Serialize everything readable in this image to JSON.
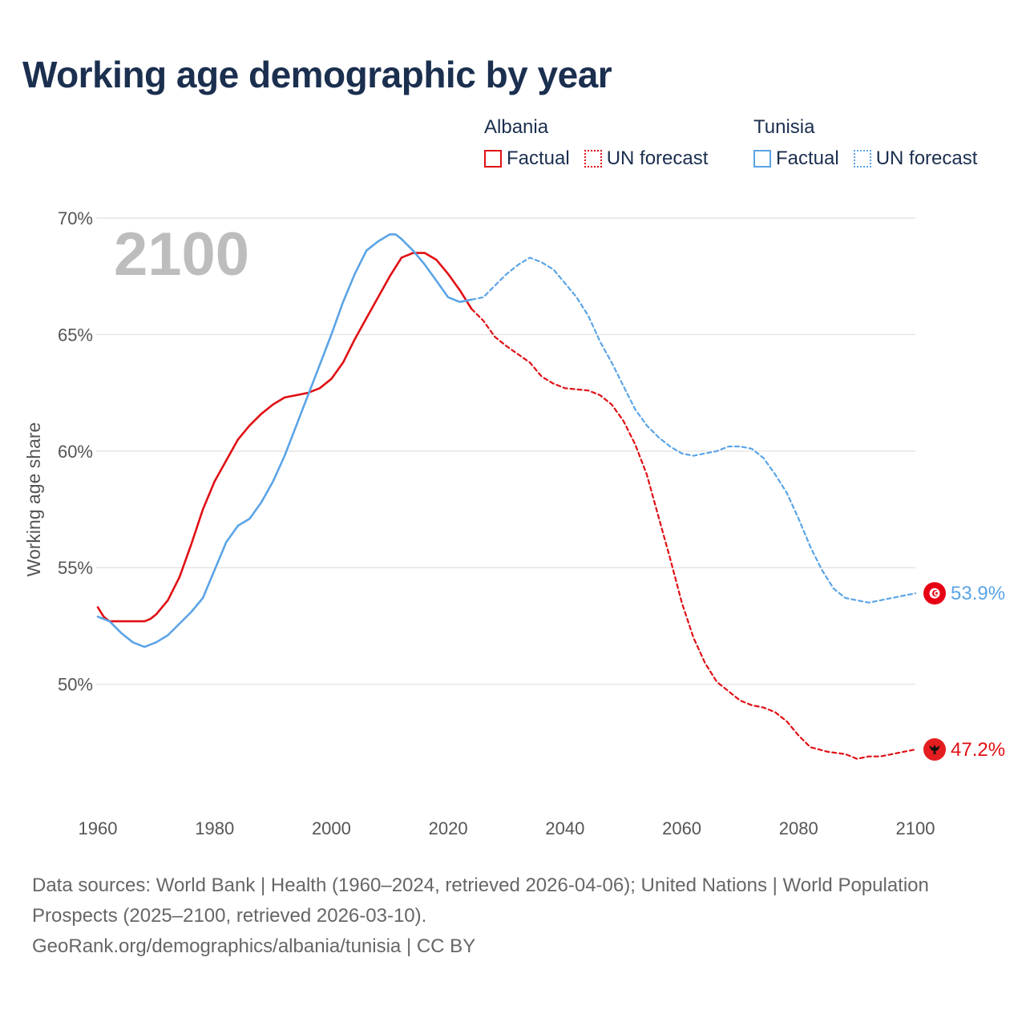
{
  "title": "Working age demographic by year",
  "legend": {
    "groups": [
      {
        "name": "Albania",
        "items": [
          {
            "label": "Factual"
          },
          {
            "label": "UN forecast"
          }
        ]
      },
      {
        "name": "Tunisia",
        "items": [
          {
            "label": "Factual"
          },
          {
            "label": "UN forecast"
          }
        ]
      }
    ]
  },
  "colors": {
    "albania": "#e00f14",
    "tunisia": "#5ba4e6",
    "grid": "#e6e6e6",
    "tick_text": "#555555",
    "year_label": "#bdbdbd"
  },
  "year_label": "2100",
  "sources": {
    "line1": "Data sources: World Bank | Health (1960–2024, retrieved 2026-04-06); United Nations | World Population Prospects (2025–2100, retrieved 2026-03-10).",
    "line2": "GeoRank.org/demographics/albania/tunisia | CC BY"
  },
  "chart_data": {
    "type": "line",
    "title": "Working age demographic by year",
    "xlabel": "",
    "ylabel": "Working age share",
    "xlim": [
      1960,
      2100
    ],
    "ylim": [
      45,
      70
    ],
    "x_ticks": [
      1960,
      1980,
      2000,
      2020,
      2040,
      2060,
      2080,
      2100
    ],
    "x_tick_labels": [
      "1960",
      "1980",
      "2000",
      "2020",
      "2040",
      "2060",
      "2080",
      "2100"
    ],
    "y_ticks": [
      50,
      55,
      60,
      65,
      70
    ],
    "y_tick_labels": [
      "50%",
      "55%",
      "60%",
      "65%",
      "70%"
    ],
    "grid": true,
    "series": [
      {
        "name": "Albania",
        "kind": "Factual",
        "country": "albania",
        "x": [
          1960,
          1961,
          1962,
          1964,
          1966,
          1968,
          1969,
          1970,
          1972,
          1974,
          1976,
          1978,
          1980,
          1982,
          1984,
          1986,
          1988,
          1990,
          1992,
          1994,
          1996,
          1998,
          2000,
          2002,
          2004,
          2006,
          2008,
          2010,
          2012,
          2014,
          2016,
          2018,
          2020,
          2022,
          2024
        ],
        "values": [
          53.3,
          52.9,
          52.7,
          52.7,
          52.7,
          52.7,
          52.8,
          53.0,
          53.6,
          54.6,
          56.0,
          57.5,
          58.7,
          59.6,
          60.5,
          61.1,
          61.6,
          62.0,
          62.3,
          62.4,
          62.5,
          62.7,
          63.1,
          63.8,
          64.8,
          65.7,
          66.6,
          67.5,
          68.3,
          68.5,
          68.5,
          68.2,
          67.6,
          66.9,
          66.1
        ]
      },
      {
        "name": "Albania",
        "kind": "UN forecast",
        "country": "albania",
        "x": [
          2024,
          2026,
          2028,
          2030,
          2034,
          2036,
          2038,
          2040,
          2044,
          2046,
          2048,
          2050,
          2052,
          2054,
          2056,
          2058,
          2060,
          2062,
          2064,
          2066,
          2068,
          2070,
          2072,
          2074,
          2076,
          2078,
          2080,
          2082,
          2085,
          2088,
          2090,
          2092,
          2094,
          2096,
          2098,
          2100
        ],
        "values": [
          66.1,
          65.6,
          64.9,
          64.5,
          63.8,
          63.2,
          62.9,
          62.7,
          62.6,
          62.4,
          62.0,
          61.3,
          60.3,
          59.0,
          57.2,
          55.4,
          53.5,
          52.0,
          50.9,
          50.1,
          49.7,
          49.3,
          49.1,
          49.0,
          48.8,
          48.4,
          47.8,
          47.3,
          47.1,
          47.0,
          46.8,
          46.9,
          46.9,
          47.0,
          47.1,
          47.2
        ]
      },
      {
        "name": "Tunisia",
        "kind": "Factual",
        "country": "tunisia",
        "x": [
          1960,
          1962,
          1964,
          1966,
          1968,
          1970,
          1972,
          1974,
          1976,
          1978,
          1980,
          1982,
          1984,
          1986,
          1988,
          1990,
          1992,
          1994,
          1996,
          1998,
          2000,
          2002,
          2004,
          2006,
          2008,
          2010,
          2011,
          2012,
          2014,
          2016,
          2018,
          2020,
          2022,
          2024
        ],
        "values": [
          52.9,
          52.7,
          52.2,
          51.8,
          51.6,
          51.8,
          52.1,
          52.6,
          53.1,
          53.7,
          54.9,
          56.1,
          56.8,
          57.1,
          57.8,
          58.7,
          59.8,
          61.1,
          62.4,
          63.7,
          65.0,
          66.4,
          67.6,
          68.6,
          69.0,
          69.3,
          69.3,
          69.1,
          68.6,
          68.0,
          67.3,
          66.6,
          66.4,
          66.5
        ]
      },
      {
        "name": "Tunisia",
        "kind": "UN forecast",
        "country": "tunisia",
        "x": [
          2024,
          2026,
          2028,
          2030,
          2032,
          2034,
          2036,
          2038,
          2040,
          2042,
          2044,
          2046,
          2048,
          2050,
          2052,
          2054,
          2056,
          2058,
          2060,
          2062,
          2064,
          2066,
          2068,
          2070,
          2072,
          2074,
          2076,
          2078,
          2080,
          2082,
          2084,
          2086,
          2088,
          2090,
          2092,
          2094,
          2096,
          2098,
          2100
        ],
        "values": [
          66.5,
          66.6,
          67.1,
          67.6,
          68.0,
          68.3,
          68.1,
          67.8,
          67.2,
          66.6,
          65.8,
          64.7,
          63.8,
          62.8,
          61.8,
          61.1,
          60.6,
          60.2,
          59.9,
          59.8,
          59.9,
          60.0,
          60.2,
          60.2,
          60.1,
          59.7,
          59.0,
          58.2,
          57.1,
          55.9,
          54.9,
          54.1,
          53.7,
          53.6,
          53.5,
          53.6,
          53.7,
          53.8,
          53.9
        ]
      }
    ],
    "end_labels": [
      {
        "country": "tunisia",
        "value": 53.9,
        "text": "53.9%"
      },
      {
        "country": "albania",
        "value": 47.2,
        "text": "47.2%"
      }
    ]
  }
}
